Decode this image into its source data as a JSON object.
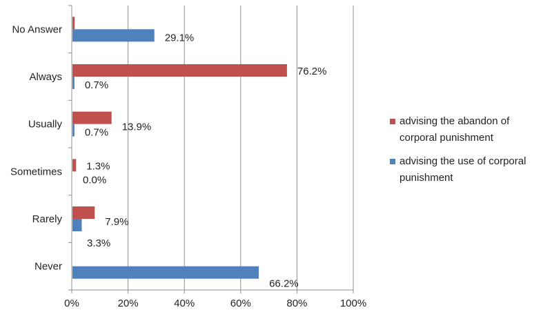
{
  "chart_data": {
    "type": "bar",
    "orientation": "horizontal",
    "categories": [
      "No Answer",
      "Always",
      "Usually",
      "Sometimes",
      "Rarely",
      "Never"
    ],
    "series": [
      {
        "name": "advising  the abandon of corporal punishment",
        "legend_lines": [
          "advising  the abandon of",
          "corporal punishment"
        ],
        "color": "#C0504D",
        "values": [
          0.8,
          76.2,
          13.9,
          1.3,
          7.9,
          null
        ],
        "labels": [
          "",
          "76.2%",
          "13.9%",
          "1.3%",
          "7.9%",
          ""
        ]
      },
      {
        "name": "advising the use of  corporal punishment",
        "legend_lines": [
          "advising the use of  corporal",
          "punishment"
        ],
        "color": "#4F81BD",
        "values": [
          29.1,
          0.7,
          0.7,
          0.0,
          3.3,
          66.2
        ],
        "labels": [
          "29.1%",
          "0.7%",
          "0.7%",
          "0.0%",
          "3.3%",
          "66.2%"
        ]
      }
    ],
    "x_ticks": [
      "0%",
      "20%",
      "40%",
      "60%",
      "80%",
      "100%"
    ],
    "xlim": [
      0,
      100
    ],
    "grid": "vertical",
    "legend_position": "right"
  }
}
